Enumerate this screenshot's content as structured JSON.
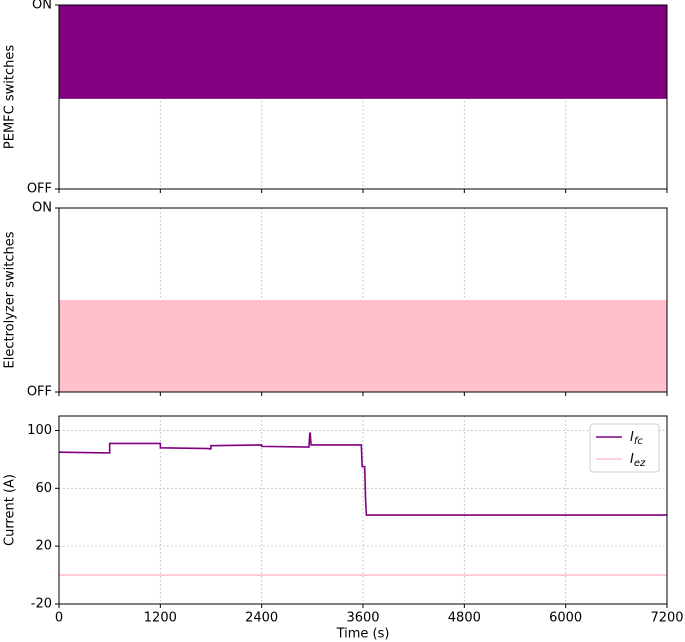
{
  "chart_data": [
    {
      "type": "band",
      "ylabel": "PEMFC switches",
      "xlim": [
        0,
        7200
      ],
      "xticks": [
        0,
        1200,
        2400,
        3600,
        4800,
        6000,
        7200
      ],
      "ylim": [
        0,
        1
      ],
      "yticks": [
        {
          "value": 0,
          "label": "OFF"
        },
        {
          "value": 1,
          "label": "ON"
        }
      ],
      "grid": "x",
      "x": [
        0,
        7200
      ],
      "series": [
        {
          "color": "#800080",
          "lower": [
            0.49,
            0.49
          ],
          "upper": [
            1,
            1
          ]
        }
      ]
    },
    {
      "type": "band",
      "ylabel": "Electrolyzer switches",
      "xlim": [
        0,
        7200
      ],
      "xticks": [
        0,
        1200,
        2400,
        3600,
        4800,
        6000,
        7200
      ],
      "ylim": [
        0,
        1
      ],
      "yticks": [
        {
          "value": 0,
          "label": "OFF"
        },
        {
          "value": 1,
          "label": "ON"
        }
      ],
      "grid": "x",
      "x": [
        0,
        7200
      ],
      "series": [
        {
          "color": "#ffc0cb",
          "lower": [
            0,
            0
          ],
          "upper": [
            0.5,
            0.5
          ]
        }
      ]
    },
    {
      "type": "line",
      "xlabel": "Time (s)",
      "ylabel": "Current (A)",
      "xlim": [
        0,
        7200
      ],
      "xticks": [
        0,
        1200,
        2400,
        3600,
        4800,
        6000,
        7200
      ],
      "ylim": [
        -20,
        110
      ],
      "yticks": [
        -20,
        20,
        60,
        100
      ],
      "grid": "both",
      "legend": "upper right",
      "x": [
        0,
        600,
        600,
        1200,
        1200,
        1780,
        1790,
        1800,
        1800,
        2400,
        2400,
        2960,
        2970,
        2975,
        2985,
        2990,
        3580,
        3590,
        3620,
        3630,
        3640,
        7200
      ],
      "series": [
        {
          "name": "I_fc",
          "color": "#800080",
          "values": [
            85,
            84.5,
            91,
            91,
            88,
            87.5,
            87,
            87.5,
            89.5,
            90,
            89,
            88.5,
            98,
            98,
            90,
            90,
            90,
            75,
            75,
            53,
            41.5,
            41.5
          ]
        },
        {
          "name": "I_ez",
          "color": "#ffc0cb",
          "values": [
            0,
            0,
            0,
            0,
            0,
            0,
            0,
            0,
            0,
            0,
            0,
            0,
            0,
            0,
            0,
            0,
            0,
            0,
            0,
            0,
            0,
            0
          ]
        }
      ]
    }
  ]
}
